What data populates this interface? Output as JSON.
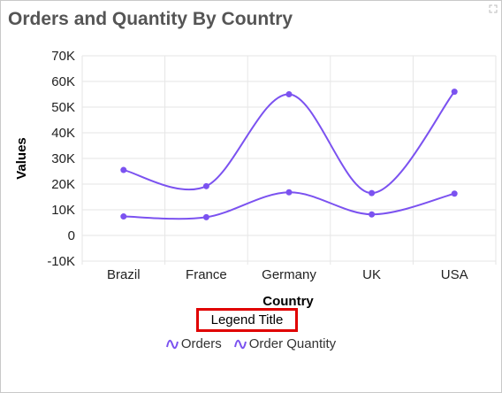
{
  "header": {
    "title": "Orders and Quantity By Country"
  },
  "legend": {
    "title": "Legend Title",
    "icon": "curve-line-icon"
  },
  "colors": {
    "series": "#7b52f0",
    "grid": "#e6e6e6",
    "axis_text": "#222222"
  },
  "chart_data": {
    "type": "line",
    "title": "Orders and Quantity By Country",
    "xlabel": "Country",
    "ylabel": "Values",
    "categories": [
      "Brazil",
      "France",
      "Germany",
      "UK",
      "USA"
    ],
    "ylim": [
      -10000,
      70000
    ],
    "yticks": [
      -10000,
      0,
      10000,
      20000,
      30000,
      40000,
      50000,
      60000,
      70000
    ],
    "ytick_labels": [
      "-10K",
      "0",
      "10K",
      "20K",
      "30K",
      "40K",
      "50K",
      "60K",
      "70K"
    ],
    "series": [
      {
        "name": "Orders",
        "values": [
          25500,
          19200,
          55000,
          16500,
          56000
        ]
      },
      {
        "name": "Order Quantity",
        "values": [
          7400,
          7100,
          16800,
          8200,
          16300
        ]
      }
    ],
    "curve": "spline",
    "markers": true,
    "grid": true,
    "legend_position": "bottom"
  }
}
